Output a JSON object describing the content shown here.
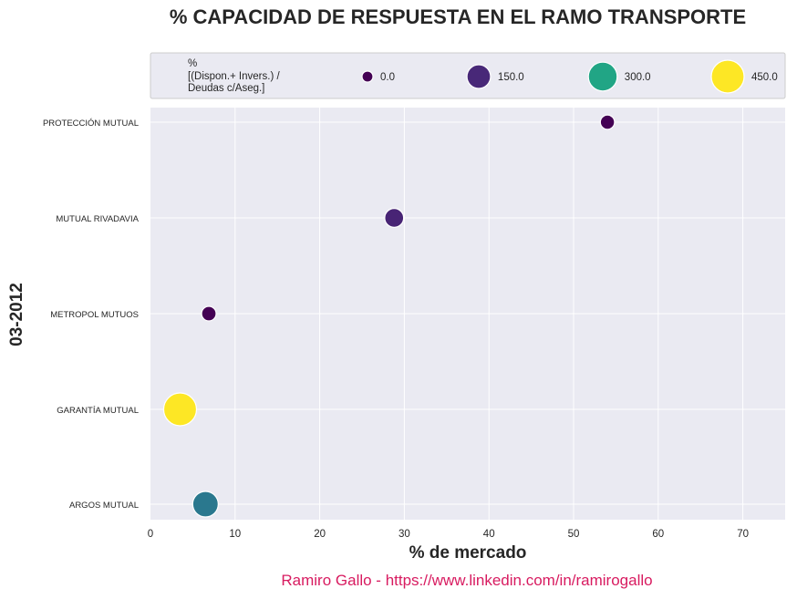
{
  "chart_data": {
    "type": "scatter",
    "title": "% CAPACIDAD DE RESPUESTA EN EL RAMO TRANSPORTE",
    "xlabel": "% de mercado",
    "ylabel": "03-2012",
    "xlim": [
      0,
      75
    ],
    "x_ticks": [
      "0",
      "10",
      "20",
      "30",
      "40",
      "50",
      "60",
      "70"
    ],
    "x_tick_values": [
      0,
      10,
      20,
      30,
      40,
      50,
      60,
      70
    ],
    "categories": [
      "PROTECCIÓN MUTUAL",
      "MUTUAL RIVADAVIA",
      "METROPOL MUTUOS",
      "GARANTÍA MUTUAL",
      "ARGOS MUTUAL"
    ],
    "grid": true,
    "legend_placement": "top",
    "size_legend": {
      "title_lines": [
        "%",
        "[(Dispon.+ Invers.) /",
        "Deudas c/Aseg.]"
      ],
      "entries": [
        {
          "label": "0.0",
          "value": 0,
          "color": "#440154"
        },
        {
          "label": "150.0",
          "value": 150,
          "color": "#482878"
        },
        {
          "label": "300.0",
          "value": 300,
          "color": "#21a585"
        },
        {
          "label": "450.0",
          "value": 450,
          "color": "#fde725"
        }
      ]
    },
    "points": [
      {
        "category": "PROTECCIÓN MUTUAL",
        "x": 54.0,
        "size_value": 10,
        "color": "#440154"
      },
      {
        "category": "MUTUAL RIVADAVIA",
        "x": 28.8,
        "size_value": 60,
        "color": "#482475"
      },
      {
        "category": "METROPOL MUTUOS",
        "x": 6.9,
        "size_value": 12,
        "color": "#440154"
      },
      {
        "category": "GARANTÍA MUTUAL",
        "x": 3.5,
        "size_value": 450,
        "color": "#fde725"
      },
      {
        "category": "ARGOS MUTUAL",
        "x": 6.5,
        "size_value": 200,
        "color": "#2a788e"
      }
    ]
  },
  "footer": {
    "credit": "Ramiro Gallo - https://www.linkedin.com/in/ramirogallo"
  },
  "colors": {
    "plot_background": "#eaeaf2",
    "grid": "#ffffff",
    "text": "#262626",
    "credit": "#d81b60"
  }
}
